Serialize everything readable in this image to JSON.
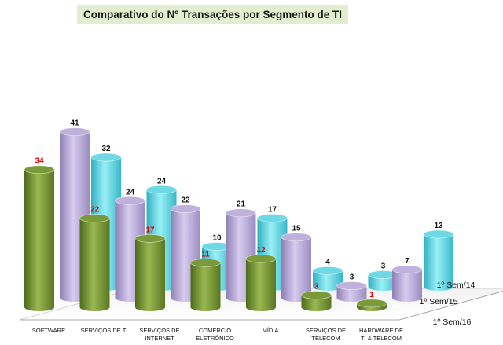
{
  "chart_data": {
    "type": "bar",
    "title": "Comparativo do Nº Transações por Segmento de TI",
    "categories": [
      [
        "SOFTWARE"
      ],
      [
        "SERVIÇOS DE TI"
      ],
      [
        "SERVIÇOS DE",
        "INTERNET"
      ],
      [
        "COMÉRCIO",
        "ELETRÔNICO"
      ],
      [
        "MÍDIA"
      ],
      [
        "SERVIÇOS DE",
        "TELECOM"
      ],
      [
        "HARDWARE DE",
        "TI & TELECOM"
      ]
    ],
    "series": [
      {
        "name": "1º Sem/16",
        "values": [
          34,
          22,
          17,
          11,
          12,
          3,
          1
        ],
        "color": "#7a9a3a",
        "label_color": "#e00000"
      },
      {
        "name": "1º Sem/15",
        "values": [
          41,
          24,
          22,
          21,
          15,
          3,
          7
        ],
        "color": "#bfb1dc",
        "label_color": "#111111"
      },
      {
        "name": "1º Sem/14",
        "values": [
          32,
          24,
          10,
          17,
          4,
          3,
          13
        ],
        "color": "#6ed9e4",
        "label_color": "#111111"
      }
    ],
    "ylim": [
      0,
      45
    ],
    "legend": "right-depth-axis"
  }
}
